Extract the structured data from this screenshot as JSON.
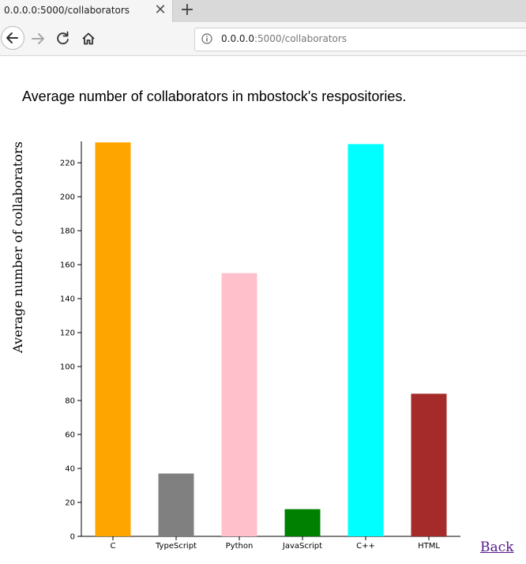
{
  "browser": {
    "tab_title": "0.0.0.0:5000/collaborators",
    "url_host": "0.0.0.0",
    "url_rest": ":5000/collaborators"
  },
  "icons": {
    "tab_close": "close-icon",
    "new_tab": "plus-icon",
    "back": "back-arrow-icon",
    "forward": "forward-arrow-icon",
    "reload": "reload-icon",
    "home": "home-icon",
    "site_info": "info-icon"
  },
  "page": {
    "heading": "Average number of collaborators in mbostock's respositories.",
    "back_link": "Back"
  },
  "chart_data": {
    "type": "bar",
    "title": "",
    "xlabel": "",
    "ylabel": "Average number of collaborators",
    "categories": [
      "C",
      "TypeScript",
      "Python",
      "JavaScript",
      "C++",
      "HTML"
    ],
    "values": [
      232,
      37,
      155,
      16,
      231,
      84
    ],
    "colors": [
      "#ffa500",
      "#808080",
      "#ffc0cb",
      "#008000",
      "#00ffff",
      "#a52a2a"
    ],
    "ylim": [
      0,
      233
    ],
    "yticks": [
      0,
      20,
      40,
      60,
      80,
      100,
      120,
      140,
      160,
      180,
      200,
      220
    ],
    "grid": false
  }
}
